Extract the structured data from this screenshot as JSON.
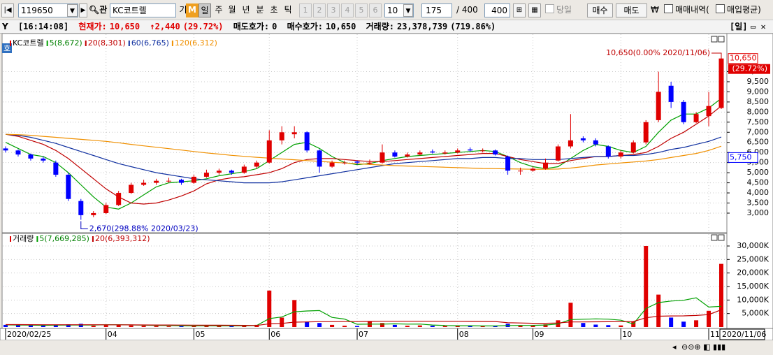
{
  "toolbar": {
    "code": "119650",
    "search": "관",
    "name": "KC코트렐",
    "buttons": [
      "기",
      "M",
      "일",
      "주",
      "월",
      "년",
      "분",
      "초",
      "틱"
    ],
    "numbers": [
      "1",
      "2",
      "3",
      "4",
      "5",
      "6"
    ],
    "period": "10",
    "count": "175",
    "total": "/ 400",
    "count2": "400",
    "today": "당일",
    "buy": "매수",
    "sell": "매도",
    "won": "₩",
    "trades": "매매내역(",
    "avg": "매입평균)"
  },
  "info": {
    "time": "[16:14:08]",
    "price_label": "현재가:",
    "price": "10,650",
    "change": "↑2,440",
    "change_pct": "(29.72%)",
    "ask_label": "매도호가:",
    "ask": "0",
    "bid_label": "매수호가:",
    "bid": "10,650",
    "vol_label": "거래량:",
    "vol": "23,378,739",
    "vol_pct": "(719.86%)",
    "period": "[일]"
  },
  "chart_data": [
    {
      "type": "candlestick",
      "legend_title": "KC코트렐",
      "up_color": "#e00000",
      "down_color": "#0000ff",
      "grid": true,
      "categories": [
        "2020/02/25",
        null,
        null,
        null,
        null,
        null,
        null,
        null,
        "04",
        null,
        null,
        null,
        null,
        null,
        null,
        "05",
        null,
        null,
        null,
        null,
        null,
        "06",
        null,
        null,
        null,
        null,
        null,
        null,
        "07",
        null,
        null,
        null,
        null,
        null,
        null,
        null,
        "08",
        null,
        null,
        null,
        null,
        null,
        "09",
        null,
        null,
        null,
        null,
        null,
        null,
        "10",
        null,
        null,
        null,
        null,
        null,
        null,
        "11",
        "2020/11/06"
      ],
      "ohlc": [
        [
          6200,
          6300,
          6000,
          6100
        ],
        [
          6100,
          6150,
          5800,
          5900
        ],
        [
          5900,
          5950,
          5600,
          5700
        ],
        [
          5700,
          5800,
          5500,
          5600
        ],
        [
          5500,
          5600,
          4800,
          4900
        ],
        [
          4900,
          5000,
          3600,
          3700
        ],
        [
          3600,
          3700,
          2670,
          2900
        ],
        [
          2900,
          3100,
          2800,
          3000
        ],
        [
          3000,
          3500,
          2950,
          3400
        ],
        [
          3400,
          4100,
          3350,
          4000
        ],
        [
          4000,
          4500,
          3950,
          4400
        ],
        [
          4400,
          4650,
          4350,
          4500
        ],
        [
          4500,
          4700,
          4400,
          4600
        ],
        [
          4600,
          4750,
          4500,
          4600
        ],
        [
          4650,
          4700,
          4400,
          4500
        ],
        [
          4500,
          4900,
          4450,
          4800
        ],
        [
          4800,
          5150,
          4750,
          5000
        ],
        [
          5000,
          5200,
          4900,
          5100
        ],
        [
          5100,
          5150,
          4900,
          5000
        ],
        [
          5000,
          5400,
          4950,
          5300
        ],
        [
          5300,
          5600,
          5200,
          5500
        ],
        [
          5500,
          7100,
          5450,
          6600
        ],
        [
          6600,
          7300,
          6400,
          7000
        ],
        [
          6900,
          7300,
          6700,
          7000
        ],
        [
          7000,
          7050,
          6000,
          6100
        ],
        [
          6100,
          6150,
          5000,
          5300
        ],
        [
          5300,
          5600,
          5250,
          5500
        ],
        [
          5500,
          5600,
          5400,
          5500
        ],
        [
          5550,
          5600,
          5400,
          5500
        ],
        [
          5450,
          5650,
          5400,
          5500
        ],
        [
          5500,
          6400,
          5450,
          6000
        ],
        [
          6000,
          6100,
          5750,
          5800
        ],
        [
          5800,
          6000,
          5750,
          5900
        ],
        [
          5900,
          6100,
          5850,
          6000
        ],
        [
          6050,
          6150,
          5950,
          6000
        ],
        [
          5950,
          6100,
          5900,
          6000
        ],
        [
          6000,
          6200,
          5950,
          6100
        ],
        [
          6150,
          6250,
          6050,
          6100
        ],
        [
          6100,
          6200,
          6000,
          6100
        ],
        [
          6100,
          6150,
          5850,
          5900
        ],
        [
          5800,
          5850,
          4900,
          5100
        ],
        [
          5100,
          5250,
          4900,
          5100
        ],
        [
          5100,
          5300,
          5050,
          5200
        ],
        [
          5200,
          5700,
          5150,
          5500
        ],
        [
          5600,
          6400,
          5550,
          6300
        ],
        [
          6300,
          7900,
          6200,
          6600
        ],
        [
          6700,
          6800,
          6500,
          6600
        ],
        [
          6600,
          6700,
          6300,
          6400
        ],
        [
          6300,
          6350,
          5700,
          5800
        ],
        [
          5800,
          6100,
          5700,
          6000
        ],
        [
          6000,
          6600,
          5950,
          6500
        ],
        [
          6500,
          7600,
          6400,
          7500
        ],
        [
          7600,
          10000,
          7500,
          9000
        ],
        [
          9300,
          9500,
          8200,
          8500
        ],
        [
          8500,
          8600,
          7400,
          7500
        ],
        [
          7500,
          8000,
          7450,
          7900
        ],
        [
          7800,
          9000,
          7300,
          8300
        ],
        [
          8200,
          10650,
          8150,
          10650
        ]
      ],
      "series": [
        {
          "name": "5(8,672)",
          "color": "#00a000",
          "values": [
            6500,
            6200,
            5900,
            5800,
            5500,
            5000,
            4400,
            3800,
            3300,
            3200,
            3500,
            3900,
            4300,
            4500,
            4550,
            4600,
            4700,
            4850,
            4950,
            5050,
            5200,
            5600,
            6000,
            6400,
            6500,
            6200,
            5800,
            5500,
            5400,
            5450,
            5600,
            5700,
            5800,
            5850,
            5900,
            5950,
            6000,
            6050,
            6100,
            6050,
            5800,
            5500,
            5300,
            5200,
            5300,
            5700,
            6100,
            6400,
            6300,
            6100,
            6000,
            6300,
            7000,
            7600,
            7900,
            7900,
            8200,
            8672
          ]
        },
        {
          "name": "20(8,301)",
          "color": "#c00000",
          "values": [
            6900,
            6800,
            6600,
            6400,
            6100,
            5700,
            5200,
            4700,
            4200,
            3800,
            3500,
            3450,
            3500,
            3650,
            3850,
            4100,
            4450,
            4650,
            4750,
            4800,
            4900,
            5000,
            5200,
            5500,
            5650,
            5700,
            5700,
            5650,
            5600,
            5550,
            5550,
            5600,
            5650,
            5700,
            5750,
            5800,
            5850,
            5900,
            5950,
            5950,
            5800,
            5650,
            5550,
            5450,
            5450,
            5600,
            5700,
            5800,
            5800,
            5850,
            5900,
            6000,
            6300,
            6700,
            7000,
            7400,
            7800,
            8301
          ]
        },
        {
          "name": "60(6,765)",
          "color": "#1030a0",
          "values": [
            6900,
            6850,
            6750,
            6600,
            6450,
            6250,
            6050,
            5850,
            5650,
            5450,
            5300,
            5150,
            5000,
            4900,
            4800,
            4700,
            4650,
            4600,
            4550,
            4500,
            4500,
            4500,
            4550,
            4650,
            4750,
            4850,
            4950,
            5050,
            5150,
            5250,
            5350,
            5450,
            5500,
            5550,
            5600,
            5650,
            5700,
            5700,
            5750,
            5750,
            5700,
            5700,
            5650,
            5650,
            5650,
            5700,
            5750,
            5800,
            5800,
            5850,
            5850,
            5900,
            6000,
            6150,
            6250,
            6400,
            6550,
            6765
          ]
        },
        {
          "name": "120(6,312)",
          "color": "#f09000",
          "values": [
            6900,
            6880,
            6850,
            6800,
            6750,
            6700,
            6650,
            6600,
            6550,
            6480,
            6400,
            6330,
            6260,
            6190,
            6120,
            6050,
            5980,
            5920,
            5860,
            5810,
            5760,
            5720,
            5680,
            5640,
            5600,
            5560,
            5520,
            5480,
            5440,
            5410,
            5380,
            5350,
            5330,
            5310,
            5290,
            5270,
            5250,
            5230,
            5210,
            5200,
            5190,
            5180,
            5170,
            5170,
            5180,
            5230,
            5300,
            5380,
            5430,
            5480,
            5530,
            5580,
            5650,
            5750,
            5850,
            5950,
            6100,
            6312
          ]
        }
      ],
      "ylim": [
        2135,
        11815
      ],
      "yticks": [
        {
          "value": 3000,
          "label": "3,000"
        },
        {
          "value": 3500,
          "label": "3,500"
        },
        {
          "value": 4000,
          "label": "4,000"
        },
        {
          "value": 4500,
          "label": "4,500"
        },
        {
          "value": 5000,
          "label": "5,000"
        },
        {
          "value": 5500,
          "label": "5,500"
        },
        {
          "value": 6000,
          "label": "6,000"
        },
        {
          "value": 6500,
          "label": "6,500"
        },
        {
          "value": 7000,
          "label": "7,000"
        },
        {
          "value": 7500,
          "label": "7,500"
        },
        {
          "value": 8000,
          "label": "8,000"
        },
        {
          "value": 8500,
          "label": "8,500"
        },
        {
          "value": 9000,
          "label": "9,000"
        },
        {
          "value": 9500,
          "label": "9,500"
        },
        {
          "value": 10000,
          "label": "10,000"
        }
      ],
      "price_tags": [
        {
          "value": 10650,
          "label": "10,650"
        },
        {
          "value": 5750,
          "label": "5,750"
        }
      ],
      "change_tag": "(29.72%)",
      "annotations": [
        "10,650(0.00% 2020/11/06)",
        "2,670(298.88% 2020/03/23)"
      ]
    },
    {
      "type": "bar",
      "legend_title": "거래량",
      "grid": true,
      "values": [
        800,
        700,
        600,
        500,
        900,
        1000,
        1200,
        500,
        700,
        900,
        600,
        500,
        400,
        300,
        300,
        500,
        700,
        400,
        300,
        600,
        800,
        13500,
        3500,
        10000,
        2000,
        1500,
        800,
        500,
        400,
        2200,
        1500,
        800,
        500,
        600,
        500,
        400,
        500,
        400,
        300,
        500,
        1200,
        600,
        500,
        1000,
        2500,
        9000,
        1500,
        900,
        700,
        600,
        2000,
        30000,
        12000,
        3500,
        2000,
        2500,
        6000,
        23379
      ],
      "series": [
        {
          "name": "5(7,669,285)",
          "color": "#00a000",
          "values": [
            800,
            750,
            700,
            650,
            700,
            740,
            740,
            740,
            860,
            860,
            780,
            700,
            620,
            560,
            480,
            440,
            460,
            440,
            440,
            500,
            560,
            3120,
            3720,
            5640,
            5960,
            6100,
            3560,
            2960,
            1040,
            1080,
            1080,
            1180,
            1080,
            1120,
            760,
            560,
            500,
            480,
            420,
            420,
            580,
            600,
            620,
            760,
            1160,
            2760,
            2900,
            3020,
            2920,
            2540,
            1140,
            6840,
            9060,
            9620,
            9900,
            10800,
            7400,
            7669.285
          ]
        },
        {
          "name": "20(6,393,312)",
          "color": "#c00000",
          "values": [
            900,
            900,
            880,
            860,
            860,
            860,
            860,
            850,
            840,
            830,
            800,
            780,
            760,
            740,
            720,
            700,
            680,
            660,
            640,
            620,
            600,
            1200,
            1350,
            1800,
            1900,
            2000,
            2000,
            2010,
            2020,
            2100,
            2150,
            2150,
            2150,
            2140,
            2140,
            2130,
            2130,
            2100,
            2080,
            2050,
            1600,
            1500,
            1400,
            1400,
            1500,
            1900,
            1900,
            1950,
            1960,
            1990,
            2050,
            3450,
            4000,
            4100,
            4150,
            4300,
            4600,
            6393.312
          ]
        }
      ],
      "ylim": [
        0,
        33100
      ],
      "yticks": [
        {
          "value": 5000,
          "label": "5,000K"
        },
        {
          "value": 10000,
          "label": "10,000K"
        },
        {
          "value": 15000,
          "label": "15,000K"
        },
        {
          "value": 20000,
          "label": "20,000K"
        },
        {
          "value": 25000,
          "label": "25,000K"
        },
        {
          "value": 30000,
          "label": "30,000K"
        }
      ]
    }
  ]
}
